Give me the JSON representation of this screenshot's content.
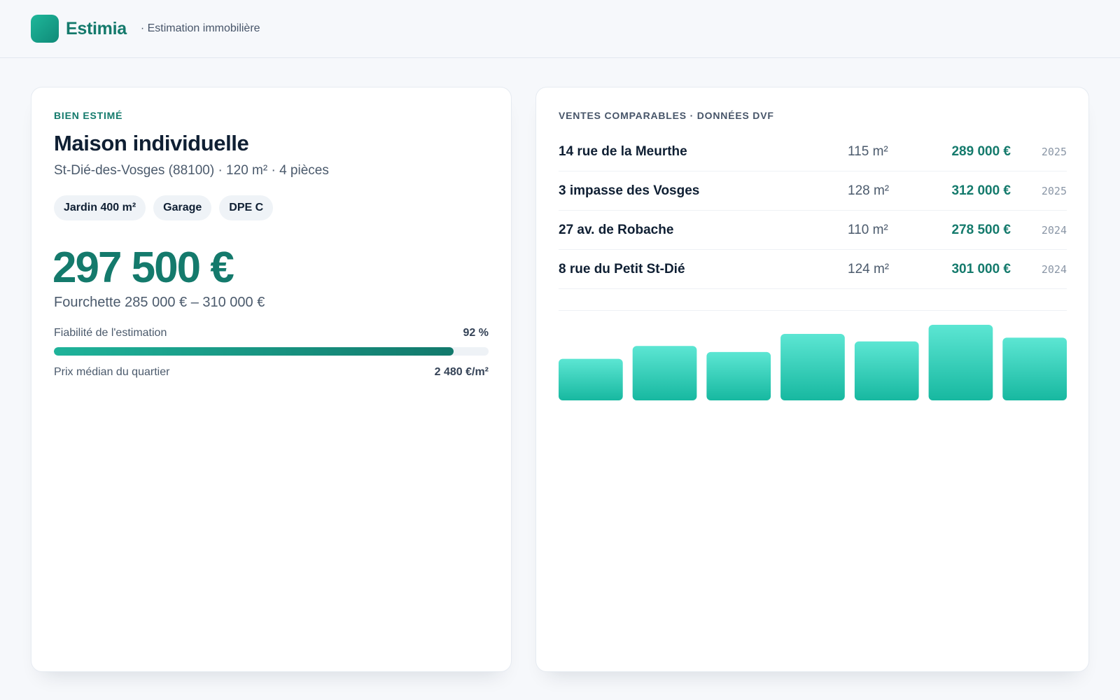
{
  "header": {
    "brand": "Estimia",
    "tagline": "· Estimation immobilière"
  },
  "property": {
    "eyebrow": "BIEN ESTIMÉ",
    "title": "Maison individuelle",
    "subtitle": "St-Dié-des-Vosges (88100) · 120 m² · 4 pièces",
    "tags": [
      "Jardin 400 m²",
      "Garage",
      "DPE C"
    ],
    "price": "297 500 €",
    "range": "Fourchette 285 000 € – 310 000 €",
    "reliability_label": "Fiabilité de l'estimation",
    "reliability_value": "92 %",
    "reliability_fraction": 0.92,
    "median_label": "Prix médian du quartier",
    "median_value": "2 480 €/m²"
  },
  "comparables": {
    "eyebrow": "VENTES COMPARABLES · DONNÉES DVF",
    "rows": [
      {
        "address": "14 rue de la Meurthe",
        "surface": "115 m²",
        "price": "289 000 €",
        "year": "2025"
      },
      {
        "address": "3 impasse des Vosges",
        "surface": "128 m²",
        "price": "312 000 €",
        "year": "2025"
      },
      {
        "address": "27 av. de Robache",
        "surface": "110 m²",
        "price": "278 500 €",
        "year": "2024"
      },
      {
        "address": "8 rue du Petit St-Dié",
        "surface": "124 m²",
        "price": "301 000 €",
        "year": "2024"
      }
    ]
  },
  "chart_data": {
    "type": "bar",
    "categories": [
      "",
      "",
      "",
      "",
      "",
      "",
      ""
    ],
    "values": [
      0.55,
      0.72,
      0.64,
      0.88,
      0.78,
      1.0,
      0.83
    ],
    "title": "",
    "xlabel": "",
    "ylabel": "",
    "ylim": [
      0,
      1
    ],
    "grid": false,
    "colors": {
      "top": "#5ce6d3",
      "bottom": "#17b8a0"
    }
  },
  "colors": {
    "accent": "#147a6c",
    "background": "#f6f8fb"
  }
}
